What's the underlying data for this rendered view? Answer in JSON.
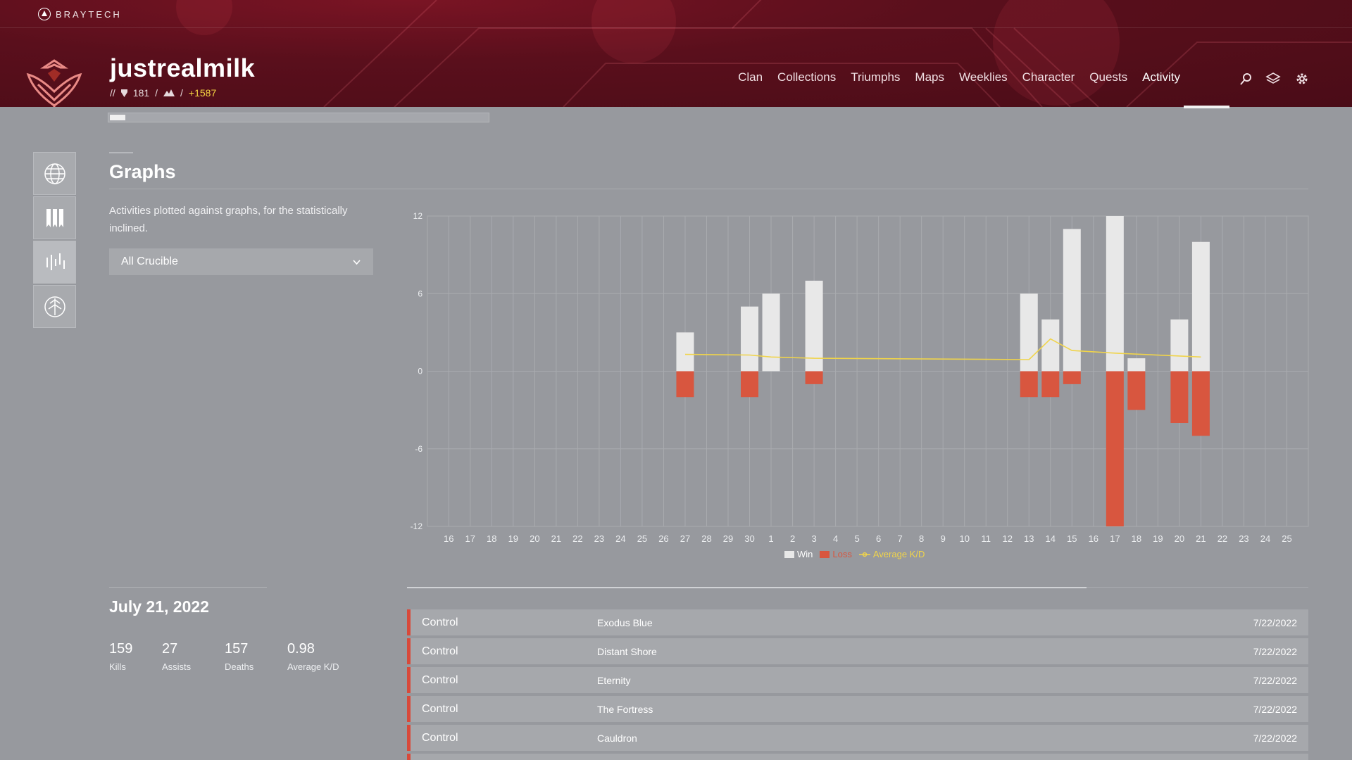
{
  "brand": {
    "name": "BRAYTECH"
  },
  "player": {
    "name": "justrealmilk",
    "prefix": "//",
    "seal_count": "181",
    "sep1": "/",
    "sep2": "/",
    "light": "+1587"
  },
  "nav": {
    "items": [
      "Clan",
      "Collections",
      "Triumphs",
      "Maps",
      "Weeklies",
      "Character",
      "Quests",
      "Activity"
    ],
    "active": "Activity",
    "icons": [
      "search-icon",
      "layers-icon",
      "gear-icon"
    ]
  },
  "progress": {
    "fraction": 0.04
  },
  "sidebar": {
    "items": [
      {
        "name": "globe-icon",
        "active": false
      },
      {
        "name": "banners-icon",
        "active": false
      },
      {
        "name": "graphs-icon",
        "active": true
      },
      {
        "name": "crucible-icon",
        "active": false
      }
    ]
  },
  "section": {
    "title": "Graphs",
    "description": "Activities plotted against graphs, for the statistically inclined.",
    "filter_value": "All Crucible"
  },
  "colors": {
    "win": "#e8e8e8",
    "loss": "#d8563f",
    "kd": "#f0d44a",
    "accent": "#d8493a"
  },
  "chart_data": {
    "type": "bar",
    "categories": [
      "16",
      "17",
      "18",
      "19",
      "20",
      "21",
      "22",
      "23",
      "24",
      "25",
      "26",
      "27",
      "28",
      "29",
      "30",
      "1",
      "2",
      "3",
      "4",
      "5",
      "6",
      "7",
      "8",
      "9",
      "10",
      "11",
      "12",
      "13",
      "14",
      "15",
      "16",
      "17",
      "18",
      "19",
      "20",
      "21",
      "22",
      "23",
      "24",
      "25"
    ],
    "ylim": [
      -12,
      12
    ],
    "yticks": [
      12,
      6,
      0,
      -6,
      -12
    ],
    "grid": true,
    "legend_position": "bottom-center",
    "series": [
      {
        "name": "Win",
        "values": [
          0,
          0,
          0,
          0,
          0,
          0,
          0,
          0,
          0,
          0,
          0,
          3,
          0,
          0,
          5,
          6,
          0,
          7,
          0,
          0,
          0,
          0,
          0,
          0,
          0,
          0,
          0,
          6,
          4,
          11,
          0,
          12,
          1,
          0,
          4,
          10,
          0,
          0,
          0,
          0
        ]
      },
      {
        "name": "Loss",
        "values": [
          0,
          0,
          0,
          0,
          0,
          0,
          0,
          0,
          0,
          0,
          0,
          -2,
          0,
          0,
          -2,
          0,
          0,
          -1,
          0,
          0,
          0,
          0,
          0,
          0,
          0,
          0,
          0,
          -2,
          -2,
          -1,
          0,
          -12,
          -3,
          0,
          -4,
          -5,
          0,
          0,
          0,
          0
        ]
      },
      {
        "name": "Average K/D",
        "points": [
          [
            11,
            1.3
          ],
          [
            14,
            1.25
          ],
          [
            15,
            1.1
          ],
          [
            17,
            1.0
          ],
          [
            27,
            0.9
          ],
          [
            28,
            2.5
          ],
          [
            29,
            1.6
          ],
          [
            31,
            1.4
          ],
          [
            35,
            1.1
          ]
        ]
      }
    ]
  },
  "summary": {
    "date": "July 21, 2022",
    "stats": [
      {
        "value": "159",
        "label": "Kills"
      },
      {
        "value": "27",
        "label": "Assists"
      },
      {
        "value": "157",
        "label": "Deaths"
      },
      {
        "value": "0.98",
        "label": "Average K/D"
      }
    ]
  },
  "activities": [
    {
      "mode": "Control",
      "map": "Exodus Blue",
      "date": "7/22/2022"
    },
    {
      "mode": "Control",
      "map": "Distant Shore",
      "date": "7/22/2022"
    },
    {
      "mode": "Control",
      "map": "Eternity",
      "date": "7/22/2022"
    },
    {
      "mode": "Control",
      "map": "The Fortress",
      "date": "7/22/2022"
    },
    {
      "mode": "Control",
      "map": "Cauldron",
      "date": "7/22/2022"
    }
  ]
}
